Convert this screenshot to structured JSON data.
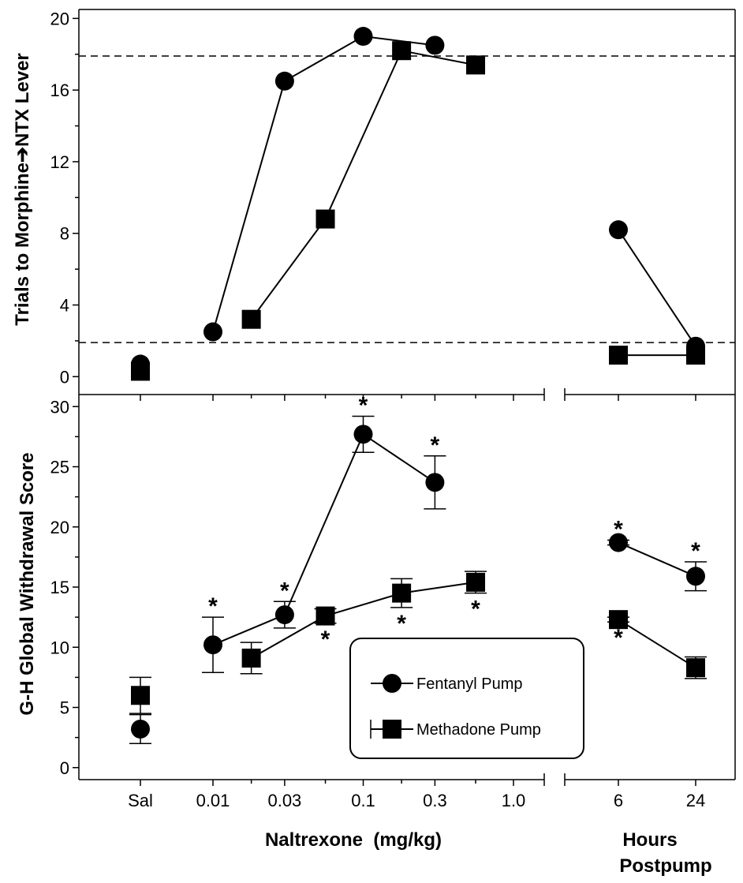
{
  "chart_data": [
    {
      "type": "line",
      "panel": "top",
      "ylabel": "Trials to Morphine➔NTX Lever",
      "ylim": [
        -1,
        20.5
      ],
      "yticks": [
        0,
        4,
        8,
        12,
        16,
        20
      ],
      "reference_lines": [
        1.9,
        17.9
      ],
      "series": [
        {
          "name": "Fentanyl Pump",
          "marker": "circle",
          "points": [
            {
              "x": "Sal",
              "y": 0.7,
              "connected": false
            },
            {
              "x": 0.01,
              "y": 2.5,
              "connected": true
            },
            {
              "x": 0.03,
              "y": 16.5,
              "connected": true
            },
            {
              "x": 0.1,
              "y": 19.0,
              "connected": true
            },
            {
              "x": 0.3,
              "y": 18.5,
              "connected": true
            },
            {
              "x": "6",
              "y": 8.2,
              "connected": true,
              "group": "hours"
            },
            {
              "x": "24",
              "y": 1.7,
              "connected": true,
              "group": "hours"
            }
          ]
        },
        {
          "name": "Methadone Pump",
          "marker": "square",
          "points": [
            {
              "x": "Sal",
              "y": 0.3,
              "connected": false
            },
            {
              "x": 0.018,
              "y": 3.2,
              "connected": true
            },
            {
              "x": 0.056,
              "y": 8.8,
              "connected": true
            },
            {
              "x": 0.18,
              "y": 18.2,
              "connected": true
            },
            {
              "x": 0.56,
              "y": 17.4,
              "connected": true
            },
            {
              "x": "6",
              "y": 1.2,
              "connected": true,
              "group": "hours"
            },
            {
              "x": "24",
              "y": 1.2,
              "connected": true,
              "group": "hours"
            }
          ]
        }
      ]
    },
    {
      "type": "line",
      "panel": "bottom",
      "ylabel": "G-H Global Withdrawal Score",
      "ylim": [
        -1,
        31
      ],
      "yticks": [
        0,
        5,
        10,
        15,
        20,
        25,
        30
      ],
      "x_ticklabels": [
        "Sal",
        "0.01",
        "0.03",
        "0.1",
        "0.3",
        "1.0"
      ],
      "x_ticklabels_hours": [
        "6",
        "24"
      ],
      "xlabel": "Naltrexone  (mg/kg)",
      "xlabel_hours": [
        "Hours",
        "Postpump"
      ],
      "series": [
        {
          "name": "Fentanyl Pump",
          "marker": "circle",
          "points": [
            {
              "x": "Sal",
              "y": 3.2,
              "err": 1.2,
              "star": false,
              "connected": false
            },
            {
              "x": 0.01,
              "y": 10.2,
              "err": 2.3,
              "star": true,
              "connected": true
            },
            {
              "x": 0.03,
              "y": 12.7,
              "err": 1.1,
              "star": true,
              "connected": true
            },
            {
              "x": 0.1,
              "y": 27.7,
              "err": 1.5,
              "star": true,
              "connected": true
            },
            {
              "x": 0.3,
              "y": 23.7,
              "err": 2.2,
              "star": true,
              "connected": true
            },
            {
              "x": "6",
              "y": 18.7,
              "err": 0.2,
              "star": true,
              "connected": true,
              "group": "hours"
            },
            {
              "x": "24",
              "y": 15.9,
              "err": 1.2,
              "star": true,
              "connected": true,
              "group": "hours"
            }
          ]
        },
        {
          "name": "Methadone Pump",
          "marker": "square",
          "points": [
            {
              "x": "Sal",
              "y": 6.0,
              "err": 1.5,
              "star": false,
              "connected": false
            },
            {
              "x": 0.018,
              "y": 9.1,
              "err": 1.3,
              "star": false,
              "connected": true
            },
            {
              "x": 0.056,
              "y": 12.6,
              "err": 0.6,
              "star": true,
              "star_below": true,
              "connected": true
            },
            {
              "x": 0.18,
              "y": 14.5,
              "err": 1.2,
              "star": true,
              "star_below": true,
              "connected": true
            },
            {
              "x": 0.56,
              "y": 15.4,
              "err": 0.9,
              "star": true,
              "star_below": true,
              "connected": true
            },
            {
              "x": "6",
              "y": 12.3,
              "err": 0.2,
              "star": true,
              "star_below": true,
              "connected": true,
              "group": "hours"
            },
            {
              "x": "24",
              "y": 8.3,
              "err": 0.9,
              "star": false,
              "connected": true,
              "group": "hours"
            }
          ]
        }
      ],
      "legend": {
        "placement": "bottom-right",
        "entries": [
          {
            "label": "Fentanyl Pump",
            "marker": "circle"
          },
          {
            "label": "Methadone Pump",
            "marker": "square"
          }
        ]
      },
      "significance_marker": "*"
    }
  ]
}
